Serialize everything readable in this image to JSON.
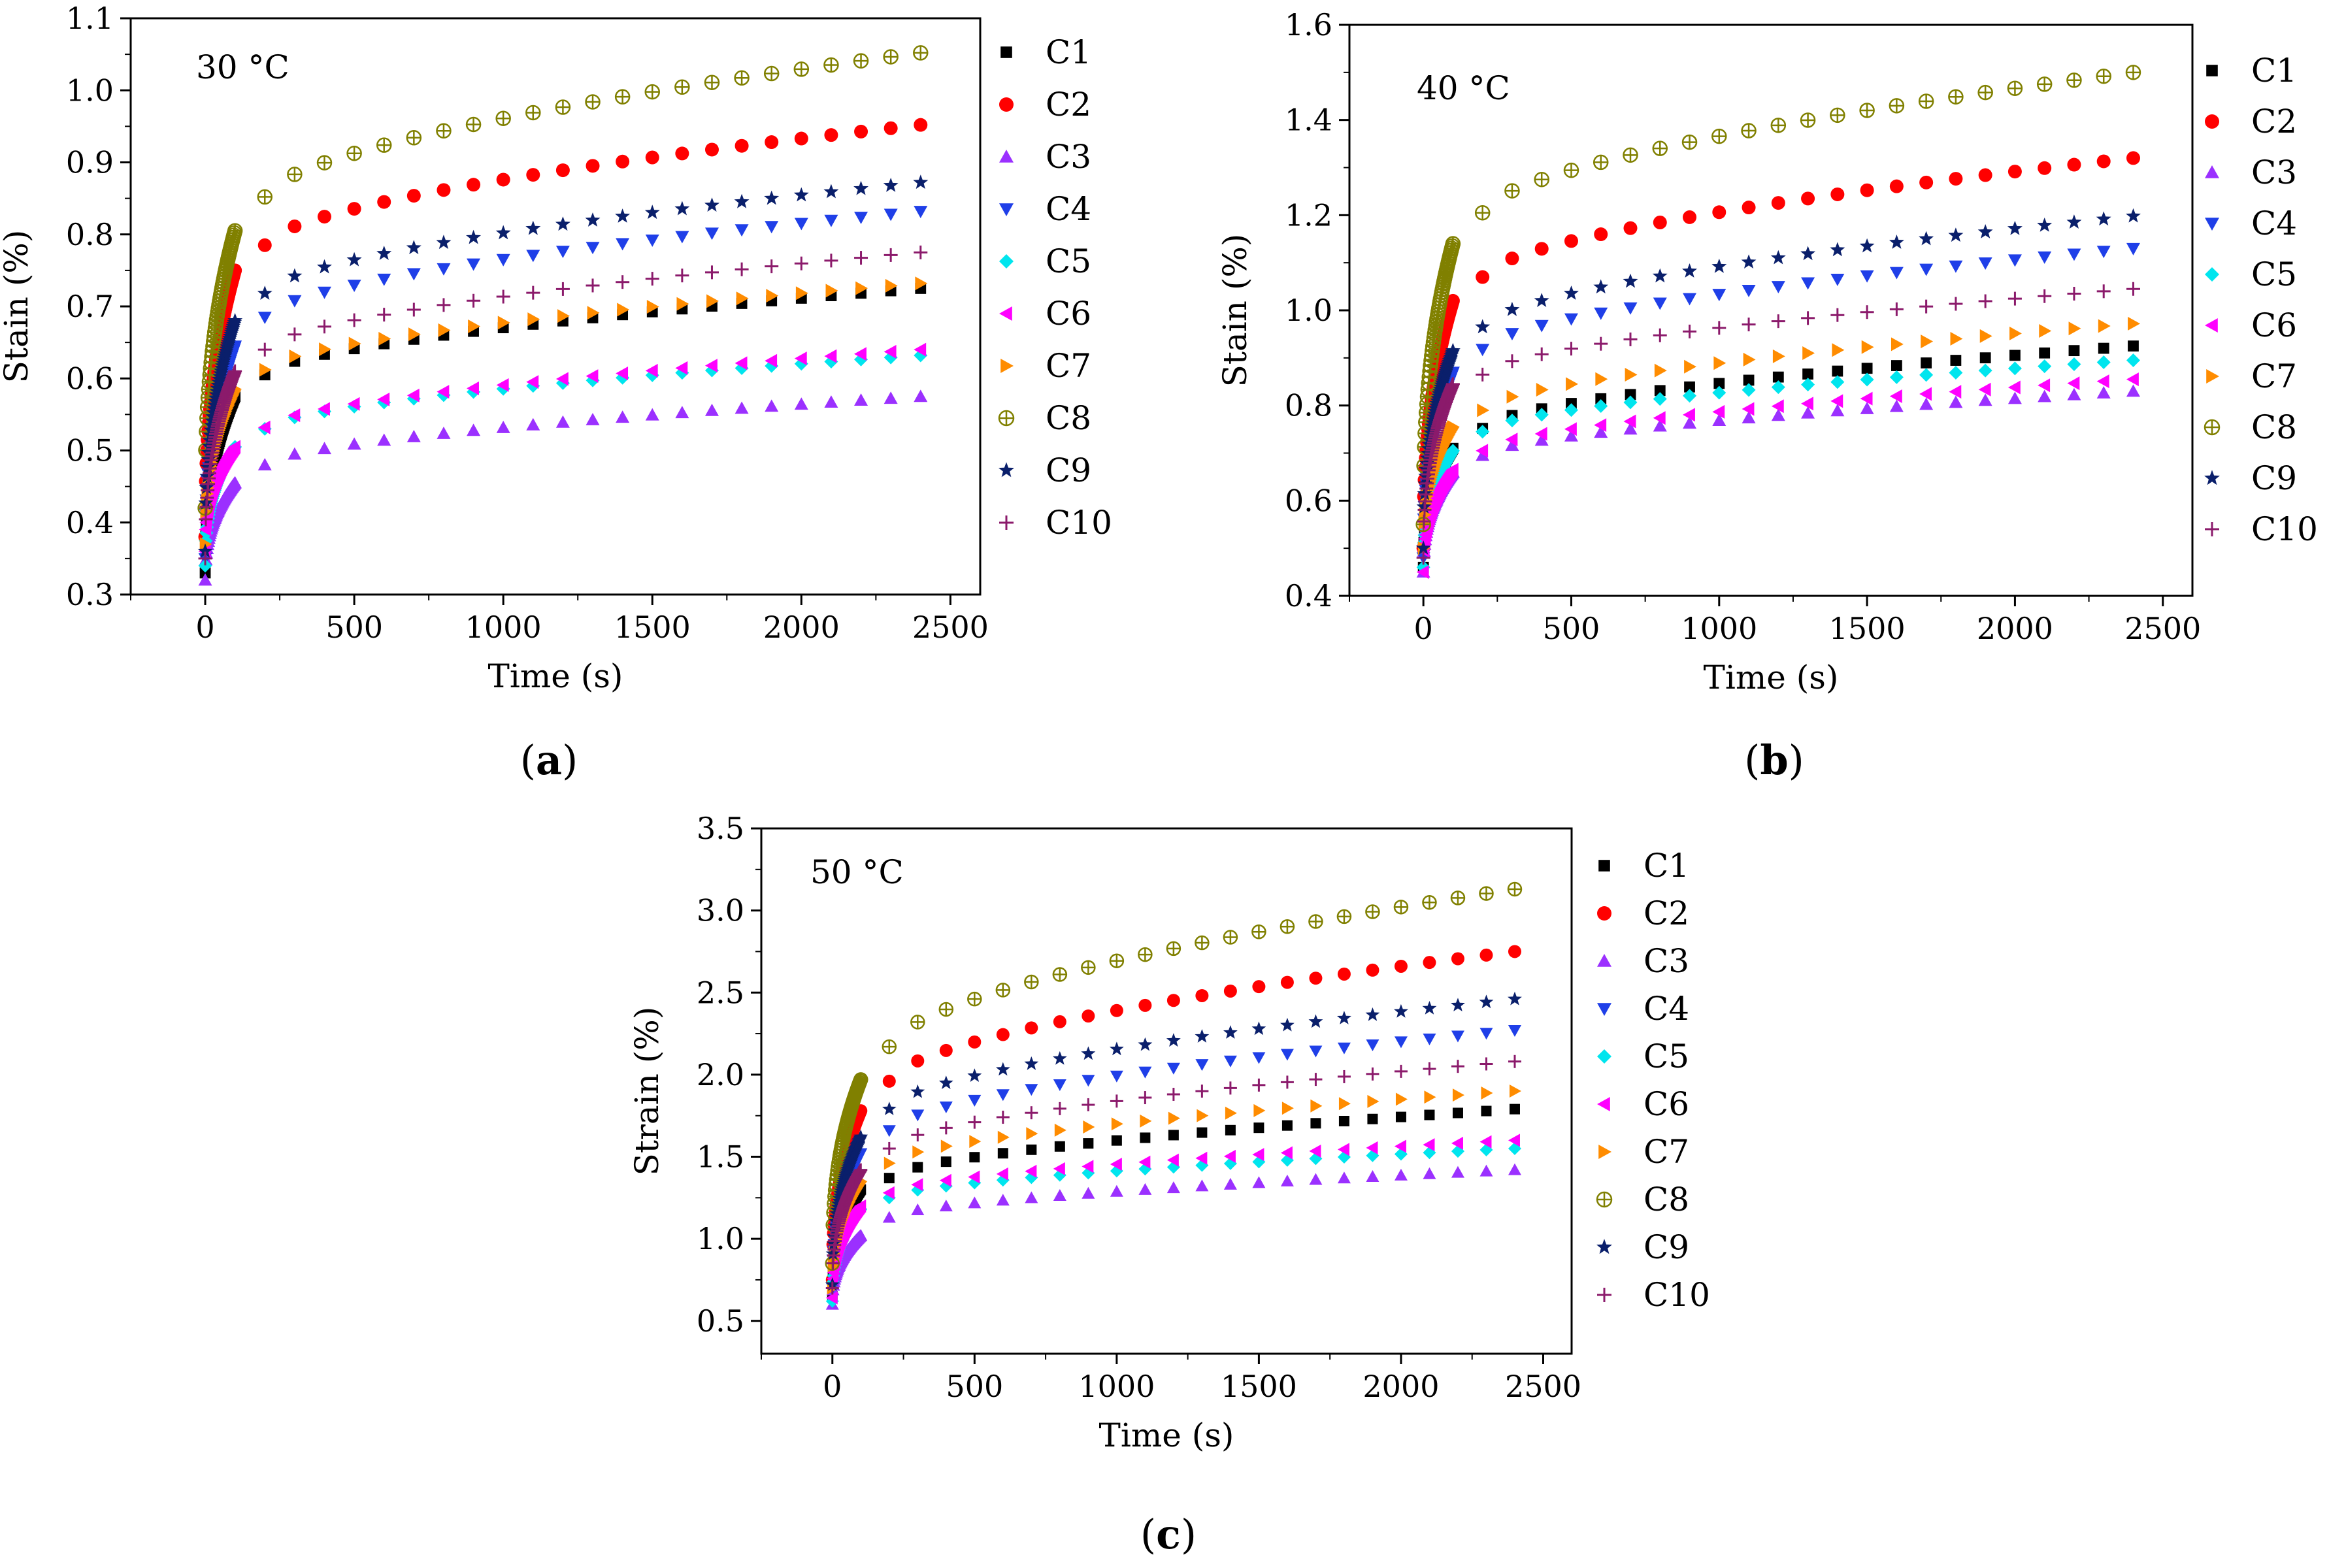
{
  "figure": {
    "panels": [
      {
        "label_open": "(",
        "label_letter": "a",
        "label_close": ")"
      },
      {
        "label_open": "(",
        "label_letter": "b",
        "label_close": ")"
      },
      {
        "label_open": "(",
        "label_letter": "c",
        "label_close": ")"
      }
    ]
  },
  "series_styles": [
    {
      "name": "C1",
      "color": "#000000",
      "marker": "square"
    },
    {
      "name": "C2",
      "color": "#ff0000",
      "marker": "circle"
    },
    {
      "name": "C3",
      "color": "#9b30ff",
      "marker": "triangle-up"
    },
    {
      "name": "C4",
      "color": "#1f3fe8",
      "marker": "triangle-down"
    },
    {
      "name": "C5",
      "color": "#00e5ee",
      "marker": "diamond"
    },
    {
      "name": "C6",
      "color": "#ff00ff",
      "marker": "triangle-left"
    },
    {
      "name": "C7",
      "color": "#ff8c00",
      "marker": "triangle-right"
    },
    {
      "name": "C8",
      "color": "#808000",
      "marker": "circle-plus"
    },
    {
      "name": "C9",
      "color": "#0a1f6b",
      "marker": "star"
    },
    {
      "name": "C10",
      "color": "#8b1a6b",
      "marker": "plus"
    }
  ],
  "chart_data": [
    {
      "type": "scatter",
      "annotation": "30 °C",
      "xlabel": "Time (s)",
      "ylabel": "Stain (%)",
      "xlim": [
        -250,
        2600
      ],
      "ylim": [
        0.3,
        1.1
      ],
      "xticks": [
        0,
        500,
        1000,
        1500,
        2000,
        2500
      ],
      "yticks": [
        "0.3",
        "0.4",
        "0.5",
        "0.6",
        "0.7",
        "0.8",
        "0.9",
        "1.0",
        "1.1"
      ],
      "legend": "outside-right",
      "series": [
        {
          "name": "C1",
          "y0": 0.33,
          "y100": 0.575,
          "y200": 0.605,
          "y2400": 0.725
        },
        {
          "name": "C2",
          "y0": 0.38,
          "y100": 0.75,
          "y200": 0.785,
          "y2400": 0.952
        },
        {
          "name": "C3",
          "y0": 0.32,
          "y100": 0.455,
          "y200": 0.48,
          "y2400": 0.575
        },
        {
          "name": "C4",
          "y0": 0.35,
          "y100": 0.645,
          "y200": 0.685,
          "y2400": 0.832
        },
        {
          "name": "C5",
          "y0": 0.34,
          "y100": 0.505,
          "y200": 0.53,
          "y2400": 0.632
        },
        {
          "name": "C6",
          "y0": 0.36,
          "y100": 0.505,
          "y200": 0.532,
          "y2400": 0.64
        },
        {
          "name": "C7",
          "y0": 0.37,
          "y100": 0.585,
          "y200": 0.612,
          "y2400": 0.732
        },
        {
          "name": "C8",
          "y0": 0.42,
          "y100": 0.805,
          "y200": 0.852,
          "y2400": 1.052
        },
        {
          "name": "C9",
          "y0": 0.36,
          "y100": 0.68,
          "y200": 0.718,
          "y2400": 0.872
        },
        {
          "name": "C10",
          "y0": 0.35,
          "y100": 0.61,
          "y200": 0.64,
          "y2400": 0.775
        }
      ]
    },
    {
      "type": "scatter",
      "annotation": "40 °C",
      "xlabel": "Time (s)",
      "ylabel": "Stain (%)",
      "xlim": [
        -250,
        2600
      ],
      "ylim": [
        0.4,
        1.6
      ],
      "xticks": [
        0,
        500,
        1000,
        1500,
        2000,
        2500
      ],
      "yticks": [
        "0.4",
        "0.6",
        "0.8",
        "1.0",
        "1.2",
        "1.4",
        "1.6"
      ],
      "legend": "outside-right",
      "series": [
        {
          "name": "C1",
          "y0": 0.46,
          "y100": 0.71,
          "y200": 0.752,
          "y2400": 0.925
        },
        {
          "name": "C2",
          "y0": 0.5,
          "y100": 1.02,
          "y200": 1.07,
          "y2400": 1.32
        },
        {
          "name": "C3",
          "y0": 0.45,
          "y100": 0.66,
          "y200": 0.695,
          "y2400": 0.83
        },
        {
          "name": "C4",
          "y0": 0.48,
          "y100": 0.87,
          "y200": 0.918,
          "y2400": 1.13
        },
        {
          "name": "C5",
          "y0": 0.46,
          "y100": 0.705,
          "y200": 0.745,
          "y2400": 0.895
        },
        {
          "name": "C6",
          "y0": 0.45,
          "y100": 0.665,
          "y200": 0.705,
          "y2400": 0.855
        },
        {
          "name": "C7",
          "y0": 0.5,
          "y100": 0.755,
          "y200": 0.79,
          "y2400": 0.972
        },
        {
          "name": "C8",
          "y0": 0.55,
          "y100": 1.14,
          "y200": 1.205,
          "y2400": 1.5
        },
        {
          "name": "C9",
          "y0": 0.5,
          "y100": 0.915,
          "y200": 0.965,
          "y2400": 1.198
        },
        {
          "name": "C10",
          "y0": 0.48,
          "y100": 0.845,
          "y200": 0.865,
          "y2400": 1.045
        }
      ]
    },
    {
      "type": "scatter",
      "annotation": "50 °C",
      "xlabel": "Time (s)",
      "ylabel": "Strain (%)",
      "xlim": [
        -250,
        2600
      ],
      "ylim": [
        0.3,
        3.5
      ],
      "xticks": [
        0,
        500,
        1000,
        1500,
        2000,
        2500
      ],
      "yticks": [
        "0.5",
        "1.0",
        "1.5",
        "2.0",
        "2.5",
        "3.0",
        "3.5"
      ],
      "legend": "outside-right",
      "series": [
        {
          "name": "C1",
          "y0": 0.65,
          "y100": 1.3,
          "y200": 1.37,
          "y2400": 1.79
        },
        {
          "name": "C2",
          "y0": 0.75,
          "y100": 1.78,
          "y200": 1.96,
          "y2400": 2.75
        },
        {
          "name": "C3",
          "y0": 0.6,
          "y100": 1.02,
          "y200": 1.13,
          "y2400": 1.42
        },
        {
          "name": "C4",
          "y0": 0.7,
          "y100": 1.52,
          "y200": 1.66,
          "y2400": 2.27
        },
        {
          "name": "C5",
          "y0": 0.62,
          "y100": 1.18,
          "y200": 1.25,
          "y2400": 1.55
        },
        {
          "name": "C6",
          "y0": 0.64,
          "y100": 1.2,
          "y200": 1.28,
          "y2400": 1.6
        },
        {
          "name": "C7",
          "y0": 0.7,
          "y100": 1.35,
          "y200": 1.46,
          "y2400": 1.9
        },
        {
          "name": "C8",
          "y0": 0.85,
          "y100": 1.97,
          "y200": 2.17,
          "y2400": 3.13
        },
        {
          "name": "C9",
          "y0": 0.72,
          "y100": 1.62,
          "y200": 1.79,
          "y2400": 2.46
        },
        {
          "name": "C10",
          "y0": 0.7,
          "y100": 1.42,
          "y200": 1.55,
          "y2400": 2.08
        }
      ]
    }
  ]
}
